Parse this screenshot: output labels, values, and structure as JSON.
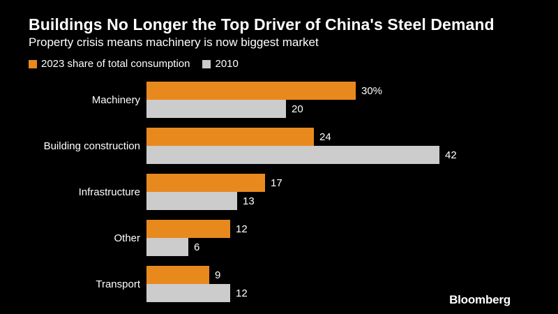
{
  "header": {
    "title": "Buildings No Longer the Top Driver of China's Steel Demand",
    "subtitle": "Property crisis means machinery is now biggest market"
  },
  "legend": {
    "series_2023": "2023 share of total consumption",
    "series_2010": "2010"
  },
  "brand": "Bloomberg",
  "colors": {
    "series_2023": "#e8891e",
    "series_2010": "#cccccc",
    "background": "#000000",
    "text": "#ffffff"
  },
  "chart_data": {
    "type": "bar",
    "orientation": "horizontal",
    "title": "Buildings No Longer the Top Driver of China's Steel Demand",
    "subtitle": "Property crisis means machinery is now biggest market",
    "categories": [
      "Machinery",
      "Building construction",
      "Infrastructure",
      "Other",
      "Transport"
    ],
    "series": [
      {
        "name": "2023 share of total consumption",
        "values": [
          30,
          24,
          17,
          12,
          9
        ],
        "labels": [
          "30%",
          "24",
          "17",
          "12",
          "9"
        ]
      },
      {
        "name": "2010",
        "values": [
          20,
          42,
          13,
          6,
          12
        ],
        "labels": [
          "20",
          "42",
          "13",
          "6",
          "12"
        ]
      }
    ],
    "unit": "%",
    "xlim": [
      0,
      42
    ],
    "grid": false,
    "legend_position": "top-left"
  }
}
